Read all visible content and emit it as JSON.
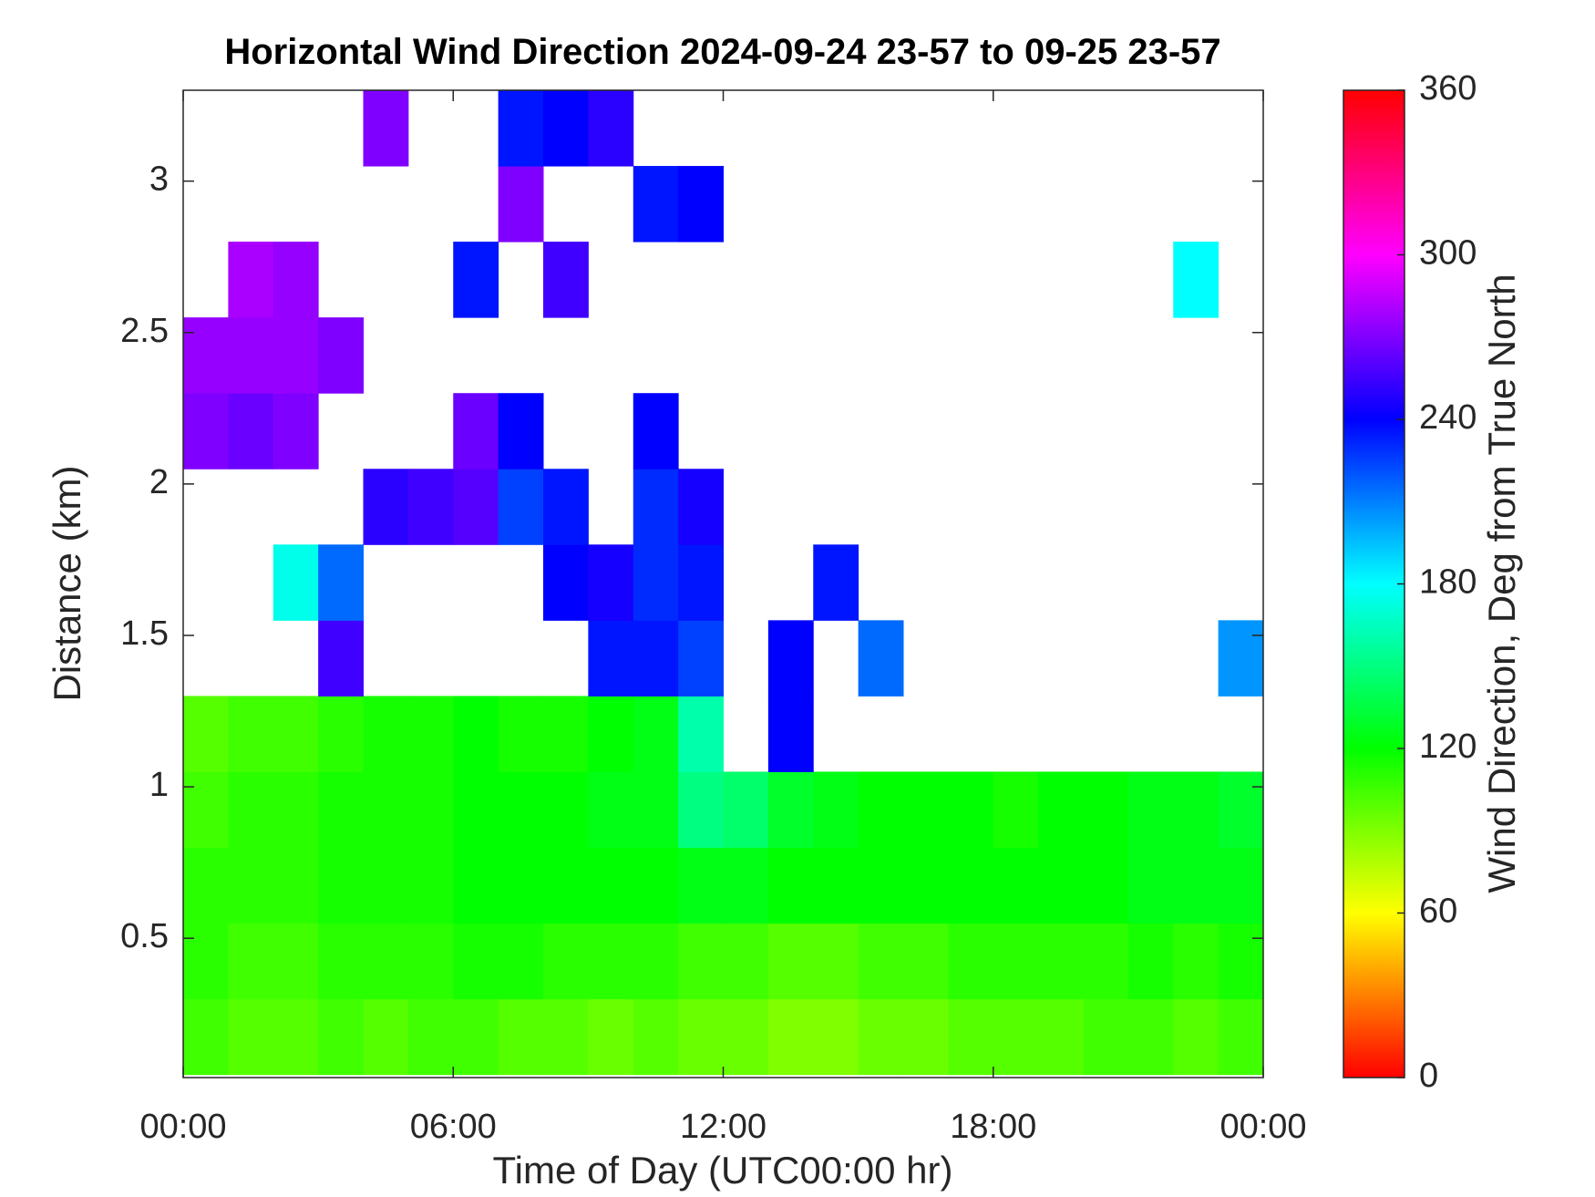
{
  "chart_data": {
    "type": "heatmap",
    "title": "Horizontal Wind Direction 2024-09-24 23-57 to 09-25 23-57",
    "x_label": "Time of Day (UTC00:00 hr)",
    "y_label": "Distance (km)",
    "colorbar_label": "Wind Direction, Deg from True North",
    "colormap": "hsv",
    "xlim": [
      0,
      24
    ],
    "xticks": [
      {
        "value": 0,
        "label": "00:00"
      },
      {
        "value": 6,
        "label": "06:00"
      },
      {
        "value": 12,
        "label": "12:00"
      },
      {
        "value": 18,
        "label": "18:00"
      },
      {
        "value": 24,
        "label": "00:00"
      }
    ],
    "ylim": [
      0.04,
      3.3
    ],
    "yticks": [
      0.5,
      1,
      1.5,
      2,
      2.5,
      3
    ],
    "zlim": [
      0,
      360
    ],
    "zticks": [
      0,
      60,
      120,
      180,
      240,
      300,
      360
    ],
    "xbins": [
      0,
      1,
      2,
      3,
      4,
      5,
      6,
      7,
      8,
      9,
      10,
      11,
      12,
      13,
      14,
      15,
      16,
      17,
      18,
      19,
      20,
      21,
      22,
      23,
      24
    ],
    "ybins": [
      0.05,
      0.3,
      0.55,
      0.8,
      1.05,
      1.3,
      1.55,
      1.8,
      2.05,
      2.3,
      2.55,
      2.8,
      3.05,
      3.3
    ],
    "values": [
      [
        105,
        100,
        100,
        105,
        100,
        105,
        105,
        100,
        100,
        95,
        100,
        95,
        95,
        90,
        90,
        95,
        95,
        100,
        100,
        100,
        105,
        105,
        100,
        105
      ],
      [
        110,
        105,
        105,
        110,
        110,
        110,
        115,
        115,
        110,
        110,
        110,
        105,
        105,
        100,
        100,
        105,
        105,
        110,
        110,
        110,
        110,
        115,
        110,
        115
      ],
      [
        110,
        110,
        110,
        115,
        115,
        115,
        120,
        120,
        120,
        120,
        120,
        125,
        125,
        120,
        120,
        120,
        120,
        120,
        120,
        120,
        120,
        125,
        125,
        125
      ],
      [
        105,
        110,
        110,
        115,
        115,
        115,
        120,
        120,
        120,
        125,
        125,
        150,
        145,
        130,
        125,
        120,
        120,
        120,
        115,
        120,
        120,
        125,
        125,
        130
      ],
      [
        100,
        105,
        105,
        110,
        115,
        115,
        120,
        115,
        115,
        120,
        125,
        160,
        null,
        240,
        null,
        null,
        null,
        null,
        null,
        null,
        null,
        null,
        null,
        null
      ],
      [
        null,
        null,
        null,
        255,
        null,
        null,
        null,
        null,
        null,
        235,
        235,
        225,
        null,
        240,
        null,
        215,
        null,
        null,
        null,
        null,
        null,
        null,
        null,
        205
      ],
      [
        null,
        null,
        175,
        215,
        null,
        null,
        null,
        null,
        240,
        245,
        230,
        235,
        null,
        null,
        235,
        null,
        null,
        null,
        null,
        null,
        null,
        null,
        null,
        null
      ],
      [
        null,
        null,
        null,
        null,
        250,
        255,
        260,
        225,
        235,
        null,
        230,
        245,
        null,
        null,
        null,
        null,
        null,
        null,
        null,
        null,
        null,
        null,
        null,
        null
      ],
      [
        270,
        265,
        270,
        null,
        null,
        null,
        265,
        240,
        null,
        null,
        240,
        null,
        null,
        null,
        null,
        null,
        null,
        null,
        null,
        null,
        null,
        null,
        null,
        null
      ],
      [
        275,
        275,
        275,
        270,
        null,
        null,
        null,
        null,
        null,
        null,
        null,
        null,
        null,
        null,
        null,
        null,
        null,
        null,
        null,
        null,
        null,
        null,
        null,
        null
      ],
      [
        null,
        280,
        275,
        null,
        null,
        null,
        235,
        null,
        255,
        null,
        null,
        null,
        null,
        null,
        null,
        null,
        null,
        null,
        null,
        null,
        null,
        null,
        180,
        null
      ],
      [
        null,
        null,
        null,
        null,
        null,
        null,
        null,
        270,
        null,
        null,
        235,
        240,
        null,
        null,
        null,
        null,
        null,
        null,
        null,
        null,
        null,
        null,
        null,
        null
      ],
      [
        null,
        null,
        null,
        null,
        270,
        null,
        null,
        235,
        240,
        250,
        null,
        null,
        null,
        null,
        null,
        null,
        null,
        null,
        null,
        null,
        null,
        null,
        null,
        null
      ]
    ]
  }
}
